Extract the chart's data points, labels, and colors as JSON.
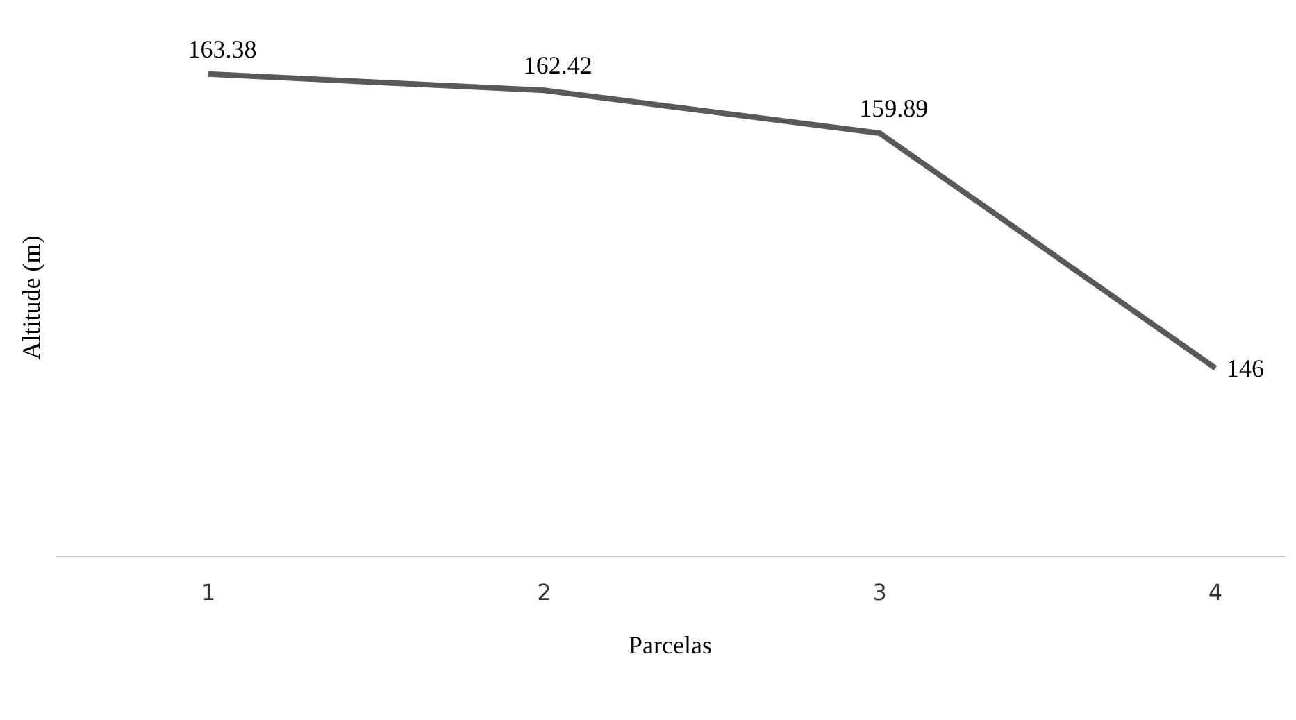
{
  "chart_data": {
    "type": "line",
    "xlabel": "Parcelas",
    "ylabel": "Altitude (m)",
    "categories": [
      "1",
      "2",
      "3",
      "4"
    ],
    "series": [
      {
        "color": "#595959",
        "values": [
          163.38,
          162.42,
          159.89,
          146
        ]
      }
    ],
    "data_labels": true,
    "marker": "none",
    "line_style": "solid",
    "grid": false,
    "legend": false
  }
}
